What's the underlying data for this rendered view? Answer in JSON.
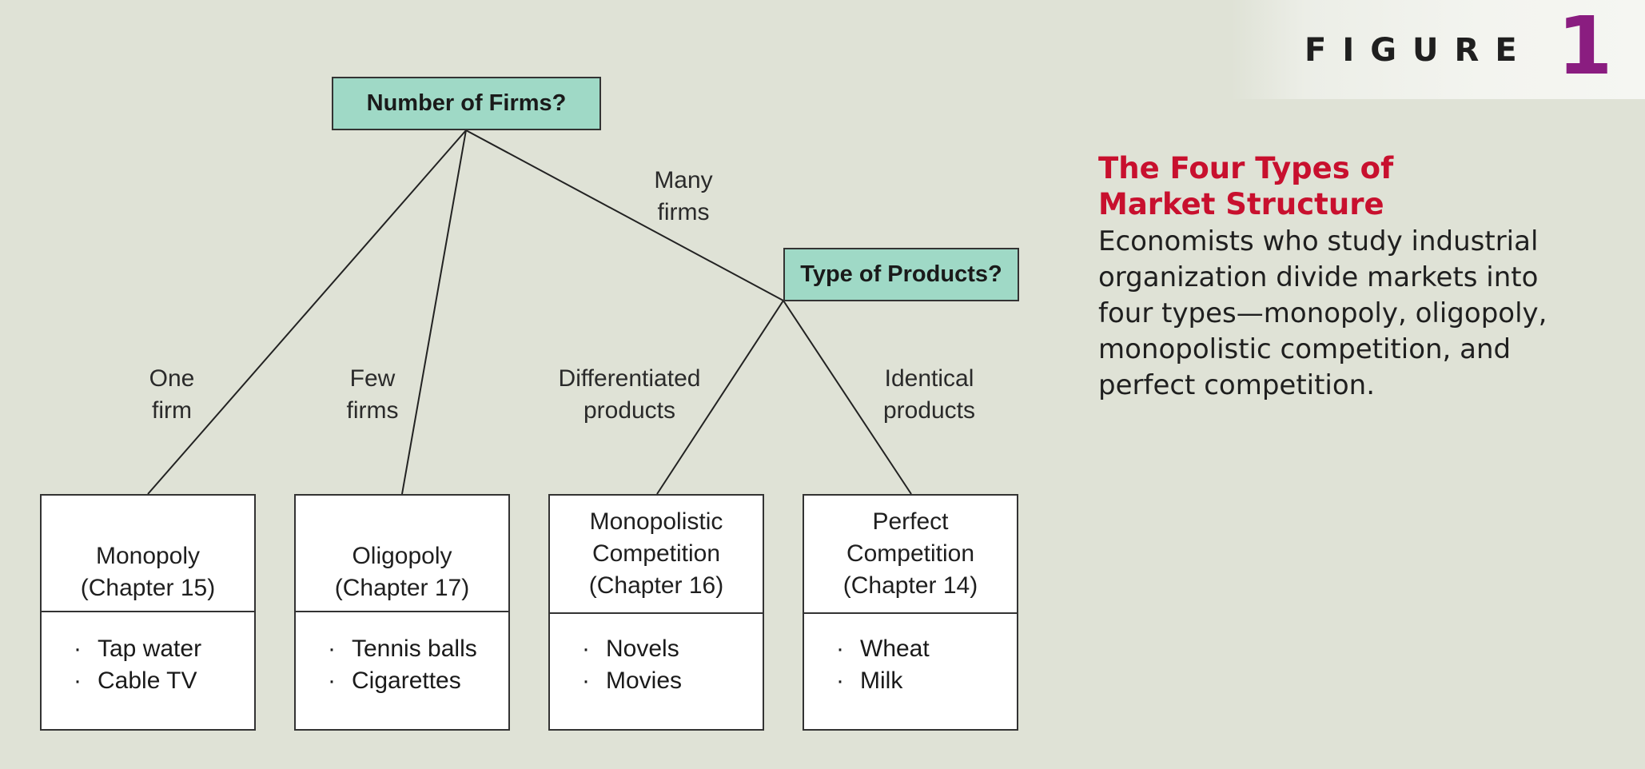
{
  "figure": {
    "word": "FIGURE",
    "number": "1"
  },
  "caption": {
    "title_line1": "The Four Types of",
    "title_line2": "Market Structure",
    "text": "Economists who study industrial organization divide markets into four types—monopoly, oligopoly, monopolistic competition, and perfect competition."
  },
  "questions": {
    "firms": "Number of Firms?",
    "products": "Type of Products?"
  },
  "branch_labels": {
    "one_firm": "One\nfirm",
    "few_firms": "Few\nfirms",
    "many_firms": "Many\nfirms",
    "differentiated": "Differentiated\nproducts",
    "identical": "Identical\nproducts"
  },
  "markets": [
    {
      "title_line1": "Monopoly",
      "title_line2": "(Chapter 15)",
      "title_line3": "",
      "examples": [
        "Tap water",
        "Cable TV"
      ]
    },
    {
      "title_line1": "Oligopoly",
      "title_line2": "(Chapter 17)",
      "title_line3": "",
      "examples": [
        "Tennis balls",
        "Cigarettes"
      ]
    },
    {
      "title_line1": "Monopolistic",
      "title_line2": "Competition",
      "title_line3": "(Chapter 16)",
      "examples": [
        "Novels",
        "Movies"
      ]
    },
    {
      "title_line1": "Perfect",
      "title_line2": "Competition",
      "title_line3": "(Chapter 14)",
      "examples": [
        "Wheat",
        "Milk"
      ]
    }
  ],
  "bullet_char": "·",
  "colors": {
    "question_fill": "#9fd9c6",
    "caption_title": "#c8102e",
    "figure_number": "#8a1d80",
    "background": "#dfe2d6"
  }
}
